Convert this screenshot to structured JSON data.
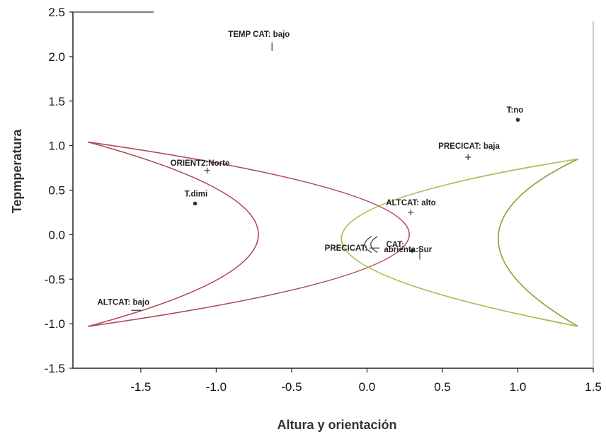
{
  "chart_data": {
    "type": "scatter",
    "title": "",
    "xlabel": "Altura y orientación",
    "ylabel": "Tepmperatura",
    "xlim": [
      -1.95,
      1.5
    ],
    "ylim": [
      -1.5,
      2.5
    ],
    "grid": false,
    "x_ticks": [
      {
        "value": -1.5,
        "label": "-1.5"
      },
      {
        "value": -1.0,
        "label": "-1.0"
      },
      {
        "value": -0.5,
        "label": "-0.5"
      },
      {
        "value": 0.0,
        "label": "0.0"
      },
      {
        "value": 0.5,
        "label": "0.5"
      },
      {
        "value": 1.0,
        "label": "1.0"
      },
      {
        "value": 1.5,
        "label": "1.5"
      }
    ],
    "y_ticks": [
      {
        "value": 2.5,
        "label": "2.5"
      },
      {
        "value": 2.0,
        "label": "2.0"
      },
      {
        "value": 1.5,
        "label": "1.5"
      },
      {
        "value": 1.0,
        "label": "1.0"
      },
      {
        "value": 0.5,
        "label": "0.5"
      },
      {
        "value": 0.0,
        "label": "0.0"
      },
      {
        "value": -0.5,
        "label": "-0.5"
      },
      {
        "value": -1.0,
        "label": "-1.0"
      },
      {
        "value": -1.5,
        "label": "-1.5"
      }
    ],
    "points": [
      {
        "label": "TEMP CAT: bajo",
        "x": -0.63,
        "y": 2.11,
        "marker": "vbar"
      },
      {
        "label": "T:no",
        "x": 1.0,
        "y": 1.29,
        "marker": "dot"
      },
      {
        "label": "PRECICAT: baja",
        "x": 0.67,
        "y": 0.87,
        "marker": "plus"
      },
      {
        "label": "ORIENT2:Norte",
        "x": -1.06,
        "y": 0.72,
        "marker": "plus"
      },
      {
        "label": "T.dimi",
        "x": -1.14,
        "y": 0.35,
        "marker": "dot"
      },
      {
        "label": "ALTCAT: alto",
        "x": 0.29,
        "y": 0.25,
        "marker": "plus"
      },
      {
        "label": "PRECICAT: ",
        "x": 0.05,
        "y": -0.15,
        "marker": "hbar"
      },
      {
        "label": "CAT: ",
        "x": 0.08,
        "y": -0.1,
        "marker": "none"
      },
      {
        "label": "abrienta:Sur",
        "x": 0.3,
        "y": -0.18,
        "marker": "dot"
      },
      {
        "label": "ALTCAT: bajo",
        "x": -1.53,
        "y": -0.85,
        "marker": "hbar"
      }
    ],
    "boundaries": [
      {
        "color": "#b0485a",
        "tips": [
          [
            -1.85,
            1.04
          ],
          [
            -1.85,
            -1.03
          ]
        ],
        "apex": [
          -0.72,
          0.0
        ],
        "inner_apex": [
          0.28,
          0.0
        ]
      },
      {
        "color": "#7aa832",
        "tips": [
          [
            1.4,
            0.85
          ],
          [
            1.4,
            -1.03
          ]
        ],
        "apex": [
          0.87,
          0.0
        ],
        "inner_apex": [
          -0.17,
          0.0
        ]
      }
    ]
  }
}
